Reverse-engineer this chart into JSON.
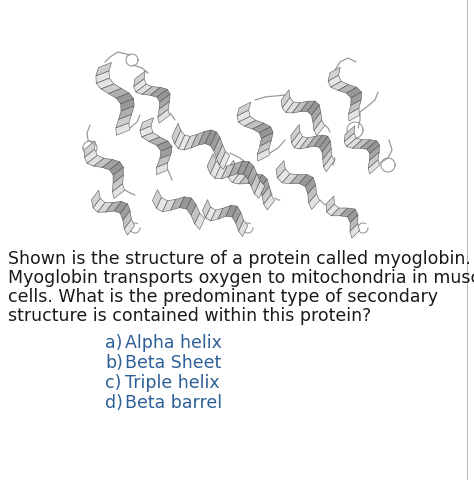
{
  "background_color": "#ffffff",
  "paragraph_lines": [
    "Shown is the structure of a protein called myoglobin.",
    "Myoglobin transports oxygen to mitochondria in muscle",
    "cells. What is the predominant type of secondary",
    "structure is contained within this protein?"
  ],
  "choices": [
    [
      "a)",
      "Alpha helix"
    ],
    [
      "b)",
      "Beta Sheet"
    ],
    [
      "c)",
      "Triple helix"
    ],
    [
      "d)",
      "Beta barrel"
    ]
  ],
  "text_color": "#1a1a1a",
  "choices_color": "#2c6096",
  "font_size_paragraph": 12.5,
  "font_size_choices": 12.5,
  "border_right_color": "#bbbbbb",
  "protein_mid": "#aaaaaa",
  "protein_light": "#d8d8d8",
  "protein_dark": "#666666",
  "protein_edge": "#555555",
  "loop_color": "#999999"
}
